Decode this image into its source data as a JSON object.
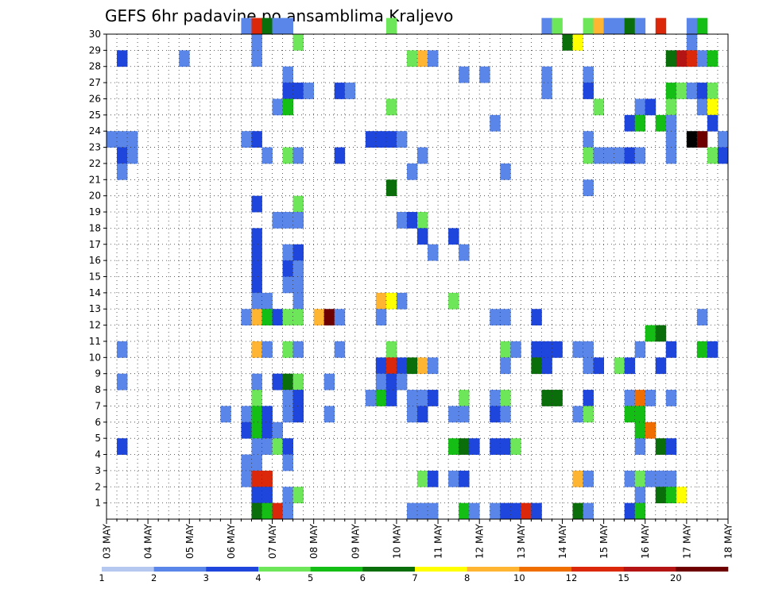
{
  "chart_data": {
    "type": "heatmap",
    "title": "GEFS 6hr padavine po ansamblima Kraljevo",
    "xlabel": "",
    "ylabel": "",
    "grid": true,
    "x_ticks": [
      "03 MAY",
      "04 MAY",
      "05 MAY",
      "06 MAY",
      "07 MAY",
      "08 MAY",
      "09 MAY",
      "10 MAY",
      "11 MAY",
      "12 MAY",
      "13 MAY",
      "14 MAY",
      "15 MAY",
      "16 MAY",
      "17 MAY",
      "18 MAY"
    ],
    "y_ticks": [
      "1",
      "2",
      "3",
      "4",
      "5",
      "6",
      "7",
      "8",
      "9",
      "10",
      "11",
      "12",
      "13",
      "14",
      "15",
      "16",
      "17",
      "18",
      "19",
      "20",
      "21",
      "22",
      "23",
      "24",
      "25",
      "26",
      "27",
      "28",
      "29",
      "30"
    ],
    "ylim": [
      0,
      30
    ],
    "columns_per_day": 4,
    "n_columns": 60,
    "legend": {
      "position": "bottom",
      "labels": [
        "1",
        "2",
        "3",
        "4",
        "5",
        "6",
        "7",
        "8",
        "10",
        "12",
        "15",
        "20"
      ],
      "colors": [
        "#b4c8f0",
        "#5a86ea",
        "#1e46dc",
        "#6ee65a",
        "#14be14",
        "#0a6e0a",
        "#ffff00",
        "#ffb432",
        "#f06e00",
        "#dc280a",
        "#b41414",
        "#6e0000"
      ]
    },
    "cells": [
      [
        13,
        30,
        1
      ],
      [
        14,
        30,
        9
      ],
      [
        15,
        30,
        5
      ],
      [
        16,
        30,
        1
      ],
      [
        17,
        30,
        1
      ],
      [
        27,
        30,
        3
      ],
      [
        42,
        30,
        1
      ],
      [
        43,
        30,
        3
      ],
      [
        46,
        30,
        3
      ],
      [
        47,
        30,
        7
      ],
      [
        48,
        30,
        1
      ],
      [
        49,
        30,
        1
      ],
      [
        50,
        30,
        5
      ],
      [
        51,
        30,
        1
      ],
      [
        53,
        30,
        9
      ],
      [
        56,
        30,
        1
      ],
      [
        57,
        30,
        4
      ],
      [
        14,
        29,
        1
      ],
      [
        18,
        29,
        3
      ],
      [
        44,
        29,
        5
      ],
      [
        45,
        29,
        6
      ],
      [
        56,
        29,
        1
      ],
      [
        1,
        28,
        2
      ],
      [
        7,
        28,
        1
      ],
      [
        14,
        28,
        1
      ],
      [
        29,
        28,
        3
      ],
      [
        30,
        28,
        7
      ],
      [
        31,
        28,
        1
      ],
      [
        54,
        28,
        5
      ],
      [
        55,
        28,
        10
      ],
      [
        56,
        28,
        9
      ],
      [
        57,
        28,
        1
      ],
      [
        58,
        28,
        4
      ],
      [
        17,
        27,
        1
      ],
      [
        34,
        27,
        1
      ],
      [
        36,
        27,
        1
      ],
      [
        42,
        27,
        1
      ],
      [
        46,
        27,
        1
      ],
      [
        17,
        26,
        2
      ],
      [
        18,
        26,
        2
      ],
      [
        19,
        26,
        1
      ],
      [
        22,
        26,
        2
      ],
      [
        23,
        26,
        1
      ],
      [
        42,
        26,
        1
      ],
      [
        46,
        26,
        2
      ],
      [
        54,
        26,
        4
      ],
      [
        55,
        26,
        3
      ],
      [
        56,
        26,
        1
      ],
      [
        57,
        26,
        2
      ],
      [
        58,
        26,
        3
      ],
      [
        16,
        25,
        1
      ],
      [
        17,
        25,
        4
      ],
      [
        27,
        25,
        3
      ],
      [
        47,
        25,
        3
      ],
      [
        51,
        25,
        1
      ],
      [
        52,
        25,
        2
      ],
      [
        54,
        25,
        3
      ],
      [
        57,
        25,
        1
      ],
      [
        58,
        25,
        6
      ],
      [
        37,
        24,
        1
      ],
      [
        50,
        24,
        2
      ],
      [
        51,
        24,
        4
      ],
      [
        53,
        24,
        4
      ],
      [
        54,
        24,
        1
      ],
      [
        58,
        24,
        2
      ],
      [
        0,
        23,
        1
      ],
      [
        1,
        23,
        1
      ],
      [
        2,
        23,
        1
      ],
      [
        13,
        23,
        1
      ],
      [
        14,
        23,
        2
      ],
      [
        25,
        23,
        2
      ],
      [
        26,
        23,
        2
      ],
      [
        27,
        23,
        2
      ],
      [
        28,
        23,
        1
      ],
      [
        46,
        23,
        1
      ],
      [
        54,
        23,
        1
      ],
      [
        56,
        23,
        12
      ],
      [
        57,
        23,
        11
      ],
      [
        59,
        23,
        1
      ],
      [
        1,
        22,
        2
      ],
      [
        2,
        22,
        1
      ],
      [
        15,
        22,
        1
      ],
      [
        17,
        22,
        3
      ],
      [
        18,
        22,
        1
      ],
      [
        22,
        22,
        2
      ],
      [
        30,
        22,
        1
      ],
      [
        46,
        22,
        3
      ],
      [
        47,
        22,
        1
      ],
      [
        48,
        22,
        1
      ],
      [
        49,
        22,
        1
      ],
      [
        50,
        22,
        2
      ],
      [
        51,
        22,
        1
      ],
      [
        54,
        22,
        1
      ],
      [
        58,
        22,
        3
      ],
      [
        59,
        22,
        2
      ],
      [
        1,
        21,
        1
      ],
      [
        29,
        21,
        1
      ],
      [
        38,
        21,
        1
      ],
      [
        27,
        20,
        5
      ],
      [
        46,
        20,
        1
      ],
      [
        14,
        19,
        2
      ],
      [
        18,
        19,
        3
      ],
      [
        16,
        18,
        1
      ],
      [
        17,
        18,
        1
      ],
      [
        18,
        18,
        1
      ],
      [
        28,
        18,
        1
      ],
      [
        29,
        18,
        2
      ],
      [
        30,
        18,
        3
      ],
      [
        14,
        17,
        2
      ],
      [
        30,
        17,
        2
      ],
      [
        33,
        17,
        2
      ],
      [
        14,
        16,
        2
      ],
      [
        17,
        16,
        1
      ],
      [
        18,
        16,
        2
      ],
      [
        31,
        16,
        1
      ],
      [
        34,
        16,
        1
      ],
      [
        14,
        15,
        2
      ],
      [
        17,
        15,
        2
      ],
      [
        18,
        15,
        1
      ],
      [
        14,
        14,
        2
      ],
      [
        17,
        14,
        1
      ],
      [
        18,
        14,
        1
      ],
      [
        14,
        13,
        1
      ],
      [
        15,
        13,
        1
      ],
      [
        18,
        13,
        1
      ],
      [
        26,
        13,
        7
      ],
      [
        27,
        13,
        6
      ],
      [
        28,
        13,
        1
      ],
      [
        33,
        13,
        3
      ],
      [
        13,
        12,
        1
      ],
      [
        14,
        12,
        7
      ],
      [
        15,
        12,
        4
      ],
      [
        16,
        12,
        2
      ],
      [
        17,
        12,
        3
      ],
      [
        18,
        12,
        3
      ],
      [
        20,
        12,
        7
      ],
      [
        21,
        12,
        11
      ],
      [
        22,
        12,
        1
      ],
      [
        26,
        12,
        1
      ],
      [
        37,
        12,
        1
      ],
      [
        38,
        12,
        1
      ],
      [
        41,
        12,
        2
      ],
      [
        57,
        12,
        1
      ],
      [
        52,
        11,
        4
      ],
      [
        53,
        11,
        5
      ],
      [
        1,
        10,
        1
      ],
      [
        14,
        10,
        7
      ],
      [
        15,
        10,
        1
      ],
      [
        17,
        10,
        3
      ],
      [
        18,
        10,
        1
      ],
      [
        22,
        10,
        1
      ],
      [
        27,
        10,
        3
      ],
      [
        38,
        10,
        3
      ],
      [
        39,
        10,
        1
      ],
      [
        41,
        10,
        2
      ],
      [
        42,
        10,
        2
      ],
      [
        43,
        10,
        2
      ],
      [
        45,
        10,
        1
      ],
      [
        46,
        10,
        1
      ],
      [
        51,
        10,
        1
      ],
      [
        54,
        10,
        2
      ],
      [
        57,
        10,
        4
      ],
      [
        58,
        10,
        2
      ],
      [
        26,
        9,
        2
      ],
      [
        27,
        9,
        9
      ],
      [
        28,
        9,
        2
      ],
      [
        29,
        9,
        5
      ],
      [
        30,
        9,
        7
      ],
      [
        31,
        9,
        1
      ],
      [
        38,
        9,
        1
      ],
      [
        41,
        9,
        5
      ],
      [
        42,
        9,
        2
      ],
      [
        46,
        9,
        1
      ],
      [
        47,
        9,
        2
      ],
      [
        49,
        9,
        3
      ],
      [
        50,
        9,
        2
      ],
      [
        53,
        9,
        2
      ],
      [
        1,
        8,
        1
      ],
      [
        14,
        8,
        1
      ],
      [
        16,
        8,
        2
      ],
      [
        17,
        8,
        5
      ],
      [
        18,
        8,
        3
      ],
      [
        21,
        8,
        1
      ],
      [
        26,
        8,
        1
      ],
      [
        27,
        8,
        2
      ],
      [
        28,
        8,
        1
      ],
      [
        14,
        7,
        3
      ],
      [
        17,
        7,
        1
      ],
      [
        18,
        7,
        2
      ],
      [
        25,
        7,
        1
      ],
      [
        26,
        7,
        4
      ],
      [
        27,
        7,
        2
      ],
      [
        29,
        7,
        1
      ],
      [
        30,
        7,
        1
      ],
      [
        31,
        7,
        2
      ],
      [
        34,
        7,
        3
      ],
      [
        37,
        7,
        1
      ],
      [
        38,
        7,
        3
      ],
      [
        42,
        7,
        5
      ],
      [
        43,
        7,
        5
      ],
      [
        46,
        7,
        2
      ],
      [
        50,
        7,
        1
      ],
      [
        51,
        7,
        8
      ],
      [
        52,
        7,
        1
      ],
      [
        54,
        7,
        1
      ],
      [
        11,
        6,
        1
      ],
      [
        13,
        6,
        1
      ],
      [
        14,
        6,
        4
      ],
      [
        15,
        6,
        2
      ],
      [
        17,
        6,
        1
      ],
      [
        18,
        6,
        2
      ],
      [
        21,
        6,
        1
      ],
      [
        29,
        6,
        1
      ],
      [
        30,
        6,
        2
      ],
      [
        33,
        6,
        1
      ],
      [
        34,
        6,
        1
      ],
      [
        37,
        6,
        2
      ],
      [
        38,
        6,
        1
      ],
      [
        45,
        6,
        1
      ],
      [
        46,
        6,
        3
      ],
      [
        50,
        6,
        4
      ],
      [
        51,
        6,
        4
      ],
      [
        13,
        5,
        2
      ],
      [
        14,
        5,
        4
      ],
      [
        15,
        5,
        2
      ],
      [
        16,
        5,
        1
      ],
      [
        51,
        5,
        4
      ],
      [
        52,
        5,
        8
      ],
      [
        1,
        4,
        2
      ],
      [
        14,
        4,
        1
      ],
      [
        15,
        4,
        1
      ],
      [
        16,
        4,
        3
      ],
      [
        17,
        4,
        2
      ],
      [
        33,
        4,
        4
      ],
      [
        34,
        4,
        5
      ],
      [
        35,
        4,
        2
      ],
      [
        37,
        4,
        2
      ],
      [
        38,
        4,
        2
      ],
      [
        39,
        4,
        3
      ],
      [
        51,
        4,
        1
      ],
      [
        53,
        4,
        5
      ],
      [
        54,
        4,
        2
      ],
      [
        13,
        3,
        1
      ],
      [
        14,
        3,
        1
      ],
      [
        17,
        3,
        1
      ],
      [
        13,
        2,
        1
      ],
      [
        14,
        2,
        9
      ],
      [
        15,
        2,
        9
      ],
      [
        30,
        2,
        3
      ],
      [
        31,
        2,
        2
      ],
      [
        33,
        2,
        1
      ],
      [
        34,
        2,
        2
      ],
      [
        45,
        2,
        7
      ],
      [
        46,
        2,
        1
      ],
      [
        50,
        2,
        1
      ],
      [
        51,
        2,
        3
      ],
      [
        52,
        2,
        1
      ],
      [
        53,
        2,
        1
      ],
      [
        54,
        2,
        1
      ],
      [
        14,
        1,
        2
      ],
      [
        15,
        1,
        2
      ],
      [
        17,
        1,
        1
      ],
      [
        18,
        1,
        3
      ],
      [
        51,
        1,
        1
      ],
      [
        53,
        1,
        5
      ],
      [
        54,
        1,
        4
      ],
      [
        55,
        1,
        6
      ],
      [
        14,
        0,
        5
      ],
      [
        15,
        0,
        4
      ],
      [
        16,
        0,
        9
      ],
      [
        17,
        0,
        1
      ],
      [
        29,
        0,
        1
      ],
      [
        30,
        0,
        1
      ],
      [
        31,
        0,
        1
      ],
      [
        34,
        0,
        4
      ],
      [
        35,
        0,
        1
      ],
      [
        37,
        0,
        1
      ],
      [
        38,
        0,
        2
      ],
      [
        39,
        0,
        2
      ],
      [
        40,
        0,
        9
      ],
      [
        41,
        0,
        2
      ],
      [
        45,
        0,
        5
      ],
      [
        46,
        0,
        1
      ],
      [
        50,
        0,
        2
      ],
      [
        51,
        0,
        4
      ]
    ]
  }
}
